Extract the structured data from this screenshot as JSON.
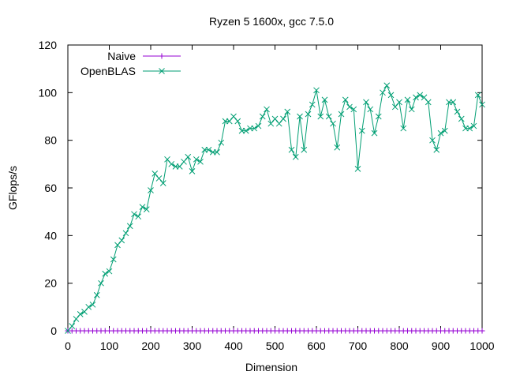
{
  "chart_data": {
    "type": "line",
    "title": "Ryzen 5 1600x, gcc 7.5.0",
    "xlabel": "Dimension",
    "ylabel": "GFlops/s",
    "xlim": [
      0,
      1000
    ],
    "ylim": [
      0,
      120
    ],
    "xticks": [
      "0",
      "100",
      "200",
      "300",
      "400",
      "500",
      "600",
      "700",
      "800",
      "900",
      "1000"
    ],
    "yticks": [
      "0",
      "20",
      "40",
      "60",
      "80",
      "100",
      "120"
    ],
    "legend_position": "top-left",
    "series": [
      {
        "name": "Naive",
        "color": "#9400d3",
        "marker": "plus",
        "x": [
          0,
          10,
          20,
          30,
          40,
          50,
          60,
          70,
          80,
          90,
          100,
          110,
          120,
          130,
          140,
          150,
          160,
          170,
          180,
          190,
          200,
          210,
          220,
          230,
          240,
          250,
          260,
          270,
          280,
          290,
          300,
          310,
          320,
          330,
          340,
          350,
          360,
          370,
          380,
          390,
          400,
          410,
          420,
          430,
          440,
          450,
          460,
          470,
          480,
          490,
          500,
          510,
          520,
          530,
          540,
          550,
          560,
          570,
          580,
          590,
          600,
          610,
          620,
          630,
          640,
          650,
          660,
          670,
          680,
          690,
          700,
          710,
          720,
          730,
          740,
          750,
          760,
          770,
          780,
          790,
          800,
          810,
          820,
          830,
          840,
          850,
          860,
          870,
          880,
          890,
          900,
          910,
          920,
          930,
          940,
          950,
          960,
          970,
          980,
          990,
          1000
        ],
        "y": [
          0,
          0,
          0,
          0,
          0,
          0,
          0,
          0,
          0,
          0,
          0,
          0,
          0,
          0,
          0,
          0,
          0,
          0,
          0,
          0,
          0,
          0,
          0,
          0,
          0,
          0,
          0,
          0,
          0,
          0,
          0,
          0,
          0,
          0,
          0,
          0,
          0,
          0,
          0,
          0,
          0,
          0,
          0,
          0,
          0,
          0,
          0,
          0,
          0,
          0,
          0,
          0,
          0,
          0,
          0,
          0,
          0,
          0,
          0,
          0,
          0,
          0,
          0,
          0,
          0,
          0,
          0,
          0,
          0,
          0,
          0,
          0,
          0,
          0,
          0,
          0,
          0,
          0,
          0,
          0,
          0,
          0,
          0,
          0,
          0,
          0,
          0,
          0,
          0,
          0,
          0,
          0,
          0,
          0,
          0,
          0,
          0,
          0,
          0,
          0,
          0
        ]
      },
      {
        "name": "OpenBLAS",
        "color": "#009e73",
        "marker": "cross",
        "x": [
          0,
          10,
          20,
          30,
          40,
          50,
          60,
          70,
          80,
          90,
          100,
          110,
          120,
          130,
          140,
          150,
          160,
          170,
          180,
          190,
          200,
          210,
          220,
          230,
          240,
          250,
          260,
          270,
          280,
          290,
          300,
          310,
          320,
          330,
          340,
          350,
          360,
          370,
          380,
          390,
          400,
          410,
          420,
          430,
          440,
          450,
          460,
          470,
          480,
          490,
          500,
          510,
          520,
          530,
          540,
          550,
          560,
          570,
          580,
          590,
          600,
          610,
          620,
          630,
          640,
          650,
          660,
          670,
          680,
          690,
          700,
          710,
          720,
          730,
          740,
          750,
          760,
          770,
          780,
          790,
          800,
          810,
          820,
          830,
          840,
          850,
          860,
          870,
          880,
          890,
          900,
          910,
          920,
          930,
          940,
          950,
          960,
          970,
          980,
          990,
          1000
        ],
        "y": [
          0,
          2,
          5,
          7,
          8,
          10,
          11,
          15,
          20,
          24,
          25,
          30,
          36,
          38,
          41,
          44,
          49,
          48,
          52,
          51,
          59,
          66,
          64,
          62,
          72,
          70,
          69,
          69,
          71,
          73,
          67,
          72,
          71,
          76,
          76,
          75,
          75,
          79,
          88,
          88,
          90,
          88,
          84,
          84,
          85,
          85,
          86,
          90,
          93,
          87,
          89,
          87,
          89,
          92,
          76,
          73,
          90,
          76,
          91,
          95,
          101,
          90,
          97,
          90,
          87,
          77,
          91,
          97,
          94,
          93,
          68,
          84,
          96,
          93,
          83,
          90,
          100,
          103,
          99,
          94,
          96,
          85,
          97,
          93,
          98,
          99,
          98,
          96,
          80,
          76,
          83,
          84,
          96,
          96,
          92,
          89,
          85,
          85,
          86,
          99,
          95
        ]
      }
    ]
  }
}
